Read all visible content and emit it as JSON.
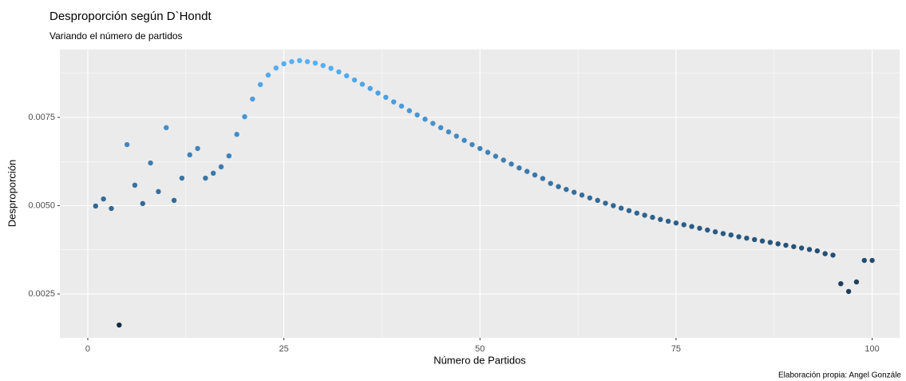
{
  "chart_data": {
    "type": "scatter",
    "title": "Desproporción según D`Hondt",
    "subtitle": "Variando el número de partidos",
    "x_label": "Número de Partidos",
    "y_label": "Desproporción",
    "caption": "Elaboración propia: Angel Gonzále",
    "x": [
      1,
      2,
      3,
      4,
      5,
      6,
      7,
      8,
      9,
      10,
      11,
      12,
      13,
      14,
      15,
      16,
      17,
      18,
      19,
      20,
      21,
      22,
      23,
      24,
      25,
      26,
      27,
      28,
      29,
      30,
      31,
      32,
      33,
      34,
      35,
      36,
      37,
      38,
      39,
      40,
      41,
      42,
      43,
      44,
      45,
      46,
      47,
      48,
      49,
      50,
      51,
      52,
      53,
      54,
      55,
      56,
      57,
      58,
      59,
      60,
      61,
      62,
      63,
      64,
      65,
      66,
      67,
      68,
      69,
      70,
      71,
      72,
      73,
      74,
      75,
      76,
      77,
      78,
      79,
      80,
      81,
      82,
      83,
      84,
      85,
      86,
      87,
      88,
      89,
      90,
      91,
      92,
      93,
      94,
      95,
      96,
      97,
      98,
      99,
      100
    ],
    "values": [
      0.00499,
      0.00519,
      0.00492,
      0.00162,
      0.00673,
      0.00558,
      0.00506,
      0.00621,
      0.0054,
      0.00721,
      0.00515,
      0.00578,
      0.00644,
      0.00662,
      0.00578,
      0.00592,
      0.0061,
      0.00641,
      0.00702,
      0.00752,
      0.00802,
      0.00843,
      0.0087,
      0.0089,
      0.00902,
      0.00908,
      0.00911,
      0.00908,
      0.00904,
      0.00897,
      0.00889,
      0.00879,
      0.00868,
      0.00856,
      0.00844,
      0.00832,
      0.00819,
      0.00807,
      0.00794,
      0.00782,
      0.00769,
      0.00757,
      0.00745,
      0.00733,
      0.00721,
      0.00709,
      0.00697,
      0.00685,
      0.00673,
      0.00662,
      0.00651,
      0.0064,
      0.00629,
      0.00618,
      0.00607,
      0.00597,
      0.00587,
      0.00577,
      0.00563,
      0.00554,
      0.00546,
      0.00538,
      0.0053,
      0.00522,
      0.00515,
      0.00507,
      0.005,
      0.00493,
      0.00486,
      0.00479,
      0.00473,
      0.00467,
      0.00461,
      0.00456,
      0.00451,
      0.00446,
      0.00441,
      0.00436,
      0.00431,
      0.00426,
      0.00421,
      0.00417,
      0.00412,
      0.00408,
      0.00404,
      0.004,
      0.00396,
      0.00392,
      0.00388,
      0.00384,
      0.0038,
      0.00376,
      0.00372,
      0.00364,
      0.0036,
      0.00279,
      0.00257,
      0.00284,
      0.00345,
      0.00345
    ],
    "color_low": "#132B43",
    "color_high": "#56B1F7",
    "xlim": [
      -3.56,
      103.5
    ],
    "ylim": [
      0.001256,
      0.009423
    ],
    "xticks": [
      0,
      25,
      50,
      75,
      100
    ],
    "yticks": [
      0.0025,
      {
        "value": 0.005,
        "label": "0.0050"
      },
      0.0075
    ],
    "minor_xticks": [
      12.5,
      37.5,
      62.5,
      87.5
    ],
    "minor_yticks": [
      0.00375,
      0.00625,
      0.00875
    ],
    "grid": true
  }
}
